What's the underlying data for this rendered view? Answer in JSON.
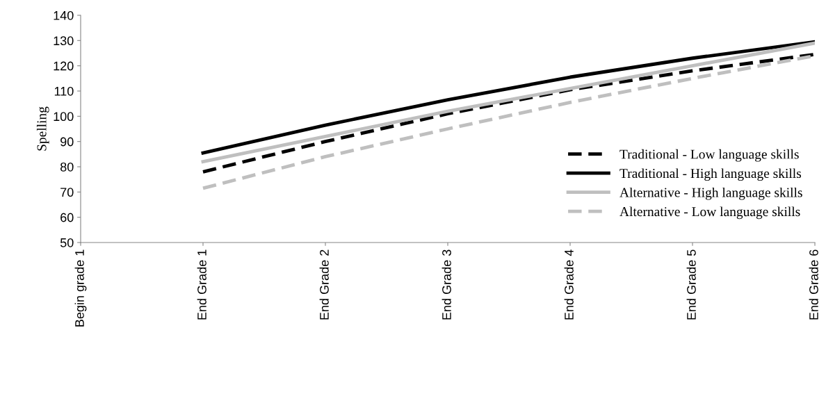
{
  "chart_data": {
    "type": "line",
    "ylabel": "Spelling",
    "categories": [
      "Begin grade 1",
      "End Grade 1",
      "End Grade 2",
      "End Grade 3",
      "End Grade 4",
      "End Grade 5",
      "End Grade 6"
    ],
    "series": [
      {
        "name": "Traditional - Low language skills",
        "color": "#000000",
        "line_style": "dashed",
        "values": [
          null,
          78,
          90,
          101,
          110.5,
          118,
          124.5
        ]
      },
      {
        "name": "Traditional - High language skills",
        "color": "#000000",
        "line_style": "solid",
        "values": [
          null,
          85.5,
          96.5,
          106.5,
          115.5,
          123,
          129.5
        ]
      },
      {
        "name": "Alternative - High language skills",
        "color": "#bfbfbf",
        "line_style": "solid",
        "values": [
          null,
          82,
          92,
          102,
          111,
          120,
          129
        ]
      },
      {
        "name": "Alternative - Low language skills",
        "color": "#bfbfbf",
        "line_style": "dashed",
        "values": [
          null,
          71.5,
          84,
          95,
          105.5,
          115,
          124
        ]
      }
    ],
    "ylim": [
      50,
      140
    ],
    "yticks": [
      50,
      60,
      70,
      80,
      90,
      100,
      110,
      120,
      130,
      140
    ],
    "grid": false,
    "legend": "bottom right",
    "marker": "none"
  }
}
